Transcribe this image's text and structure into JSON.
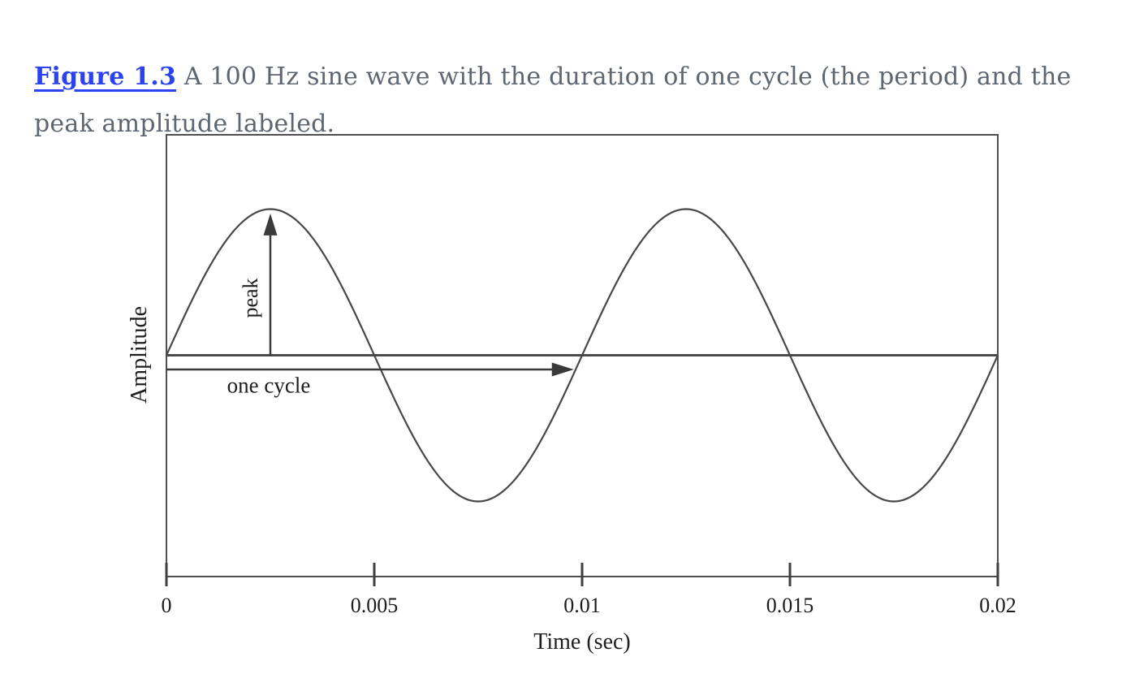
{
  "caption": {
    "figure_label": "Figure 1.3",
    "text_line1": "A 100 Hz sine wave with the duration of one cycle (the period) and the",
    "text_line2": "peak amplitude labeled.",
    "link_color": "#2a43ee",
    "text_color": "#5d6671"
  },
  "chart_data": {
    "type": "line",
    "title": "",
    "xlabel": "Time (sec)",
    "ylabel": "Amplitude",
    "xlim": [
      0,
      0.02
    ],
    "ylim": [
      -1.5,
      1.5
    ],
    "grid": false,
    "legend": "none",
    "x_ticks": [
      0,
      0.005,
      0.01,
      0.015,
      0.02
    ],
    "x_tick_labels": [
      "0",
      "0.005",
      "0.01",
      "0.015",
      "0.02"
    ],
    "line_color": "#484848",
    "series": [
      {
        "name": "sine wave",
        "shape": "sine",
        "frequency_hz": 100,
        "period_sec": 0.01,
        "peak_amplitude": 1,
        "phase_deg": 0,
        "duration_sec": 0.02,
        "cycles_shown": 2
      }
    ],
    "annotations": [
      {
        "id": "peak-arrow",
        "label": "peak",
        "arrow": "vertical",
        "t": 0.0025,
        "value_from": 0,
        "value_to": 0.97
      },
      {
        "id": "one-cycle-arrow",
        "label": "one cycle",
        "arrow": "horizontal",
        "t_from": 0,
        "t_to": 0.0098,
        "value": -0.097
      }
    ]
  }
}
